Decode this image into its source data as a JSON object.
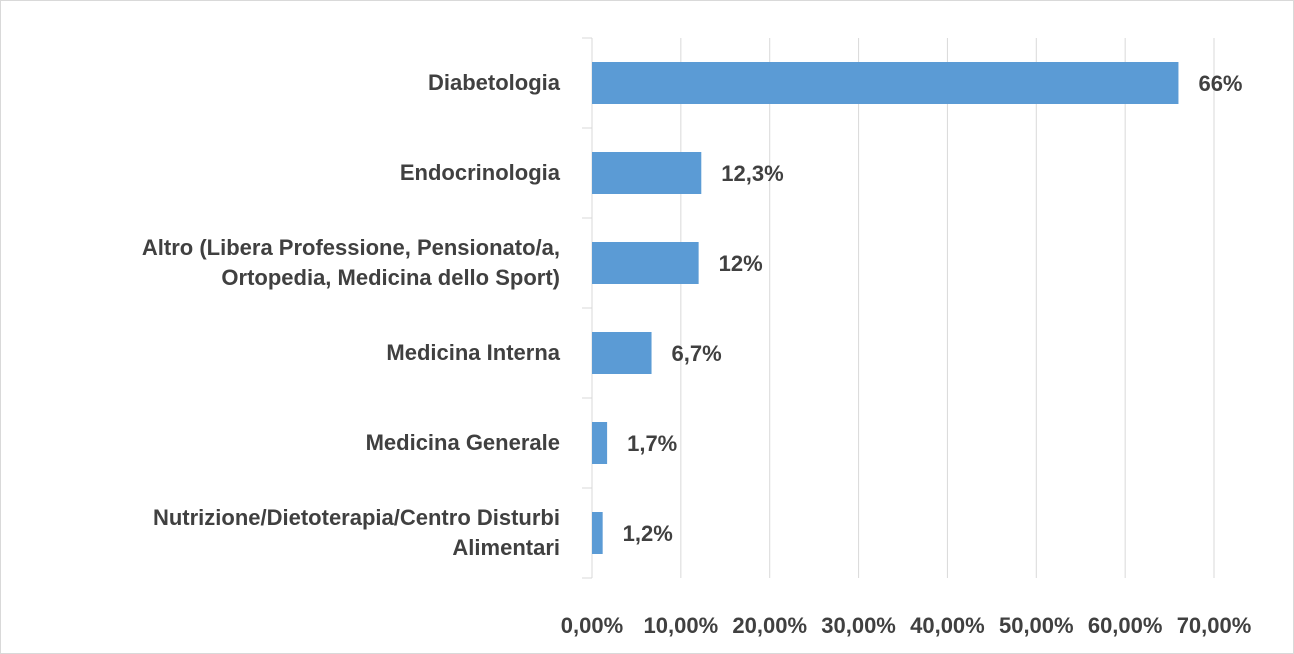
{
  "chart_data": {
    "type": "barh",
    "categories": [
      "Diabetologia",
      "Endocrinologia",
      "Altro (Libera Professione, Pensionato/a,\nOrtopedia, Medicina dello Sport)",
      "Medicina Interna",
      "Medicina Generale",
      "Nutrizione/Dietoterapia/Centro Disturbi\nAlimentari"
    ],
    "values": [
      66,
      12.3,
      12,
      6.7,
      1.7,
      1.2
    ],
    "value_labels": [
      "66%",
      "12,3%",
      "12%",
      "6,7%",
      "1,7%",
      "1,2%"
    ],
    "color": "#5b9bd5",
    "xlim": [
      0,
      70
    ],
    "xticks": [
      {
        "value": 0,
        "label": "0,00%"
      },
      {
        "value": 10,
        "label": "10,00%"
      },
      {
        "value": 20,
        "label": "20,00%"
      },
      {
        "value": 30,
        "label": "30,00%"
      },
      {
        "value": 40,
        "label": "40,00%"
      },
      {
        "value": 50,
        "label": "50,00%"
      },
      {
        "value": 60,
        "label": "60,00%"
      },
      {
        "value": 70,
        "label": "70,00%"
      }
    ],
    "grid": true
  }
}
